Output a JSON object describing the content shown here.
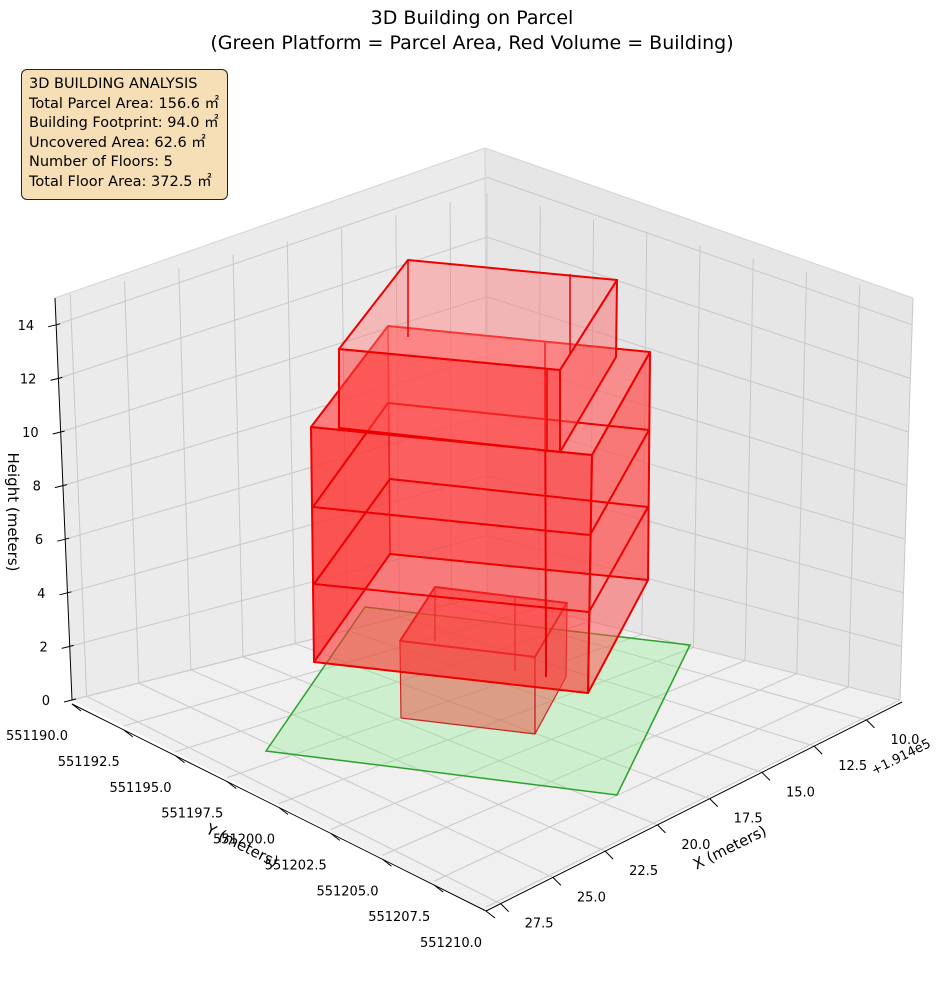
{
  "chart_data": {
    "type": "3d-box",
    "title": "3D Building on Parcel",
    "subtitle": "(Green Platform = Parcel Area, Red Volume = Building)",
    "info_box": [
      "3D BUILDING ANALYSIS",
      "Total Parcel Area: 156.6 ㎡",
      "Building Footprint: 94.0 ㎡",
      "Uncovered Area: 62.6 ㎡",
      "Number of Floors: 5",
      "Total Floor Area: 372.5 ㎡"
    ],
    "axes": {
      "x": {
        "label": "X (meters)",
        "offset_label": "+1.914e5",
        "ticks": [
          "10.0",
          "12.5",
          "15.0",
          "17.5",
          "20.0",
          "22.5",
          "25.0",
          "27.5"
        ]
      },
      "y": {
        "label": "Y (meters)",
        "ticks": [
          "551190.0",
          "551192.5",
          "551195.0",
          "551197.5",
          "551200.0",
          "551202.5",
          "551205.0",
          "551207.5",
          "551210.0"
        ]
      },
      "z": {
        "label": "Height (meters)",
        "ticks": [
          "0",
          "2",
          "4",
          "6",
          "8",
          "10",
          "12",
          "14"
        ]
      }
    },
    "parcel_color": "#90ee90",
    "building_color": "#ff0000",
    "grid": true
  }
}
